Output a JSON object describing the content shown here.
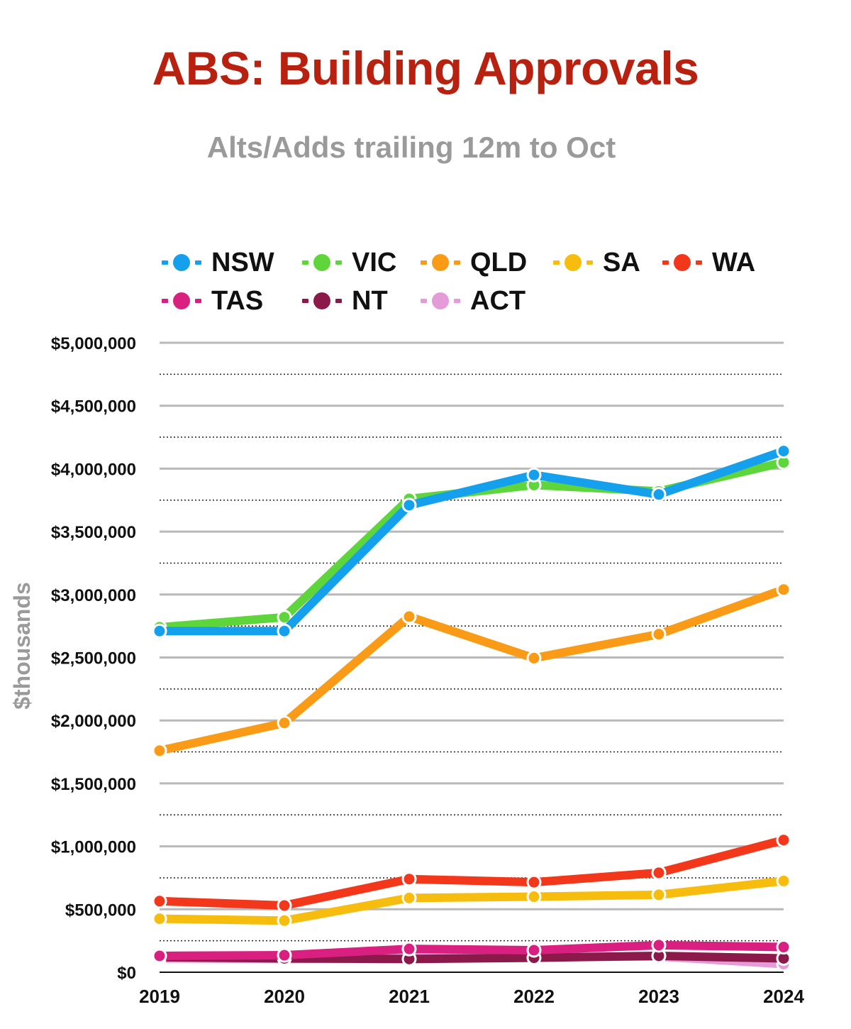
{
  "chart_data": {
    "type": "line",
    "title": "ABS: Building Approvals",
    "subtitle": "Alts/Adds trailing 12m to Oct",
    "ylabel": "$thousands",
    "xlabel": "",
    "x": [
      "2019",
      "2020",
      "2021",
      "2022",
      "2023",
      "2024"
    ],
    "ylim": [
      0,
      5000000
    ],
    "yticks": [
      0,
      500000,
      1000000,
      1500000,
      2000000,
      2500000,
      3000000,
      3500000,
      4000000,
      4500000,
      5000000
    ],
    "ytick_labels": [
      "$0",
      "$500,000",
      "$1,000,000",
      "$1,500,000",
      "$2,000,000",
      "$2,500,000",
      "$3,000,000",
      "$3,500,000",
      "$4,000,000",
      "$4,500,000",
      "$5,000,000"
    ],
    "grid": "major solid, minor dotted",
    "legend_position": "top",
    "series": [
      {
        "name": "ACT",
        "color": "#e59bd8",
        "values": [
          110000,
          105000,
          115000,
          120000,
          125000,
          65000
        ]
      },
      {
        "name": "NT",
        "color": "#8b1a4a",
        "values": [
          120000,
          110000,
          105000,
          115000,
          130000,
          110000
        ]
      },
      {
        "name": "TAS",
        "color": "#d91f7f",
        "values": [
          130000,
          135000,
          185000,
          175000,
          215000,
          200000
        ]
      },
      {
        "name": "SA",
        "color": "#f7bd0e",
        "values": [
          425000,
          410000,
          590000,
          600000,
          615000,
          725000
        ]
      },
      {
        "name": "WA",
        "color": "#f2371b",
        "values": [
          565000,
          530000,
          740000,
          715000,
          790000,
          1050000
        ]
      },
      {
        "name": "QLD",
        "color": "#f99b17",
        "values": [
          1760000,
          1980000,
          2825000,
          2495000,
          2685000,
          3040000
        ]
      },
      {
        "name": "VIC",
        "color": "#5ed63b",
        "values": [
          2740000,
          2820000,
          3760000,
          3870000,
          3820000,
          4050000
        ]
      },
      {
        "name": "NSW",
        "color": "#15a0ee",
        "values": [
          2710000,
          2710000,
          3710000,
          3950000,
          3795000,
          4140000
        ]
      }
    ]
  },
  "legend": [
    {
      "label": "NSW",
      "color": "#15a0ee"
    },
    {
      "label": "VIC",
      "color": "#5ed63b"
    },
    {
      "label": "QLD",
      "color": "#f99b17"
    },
    {
      "label": "SA",
      "color": "#f7bd0e"
    },
    {
      "label": "WA",
      "color": "#f2371b"
    },
    {
      "label": "TAS",
      "color": "#d91f7f"
    },
    {
      "label": "NT",
      "color": "#8b1a4a"
    },
    {
      "label": "ACT",
      "color": "#e59bd8"
    }
  ]
}
